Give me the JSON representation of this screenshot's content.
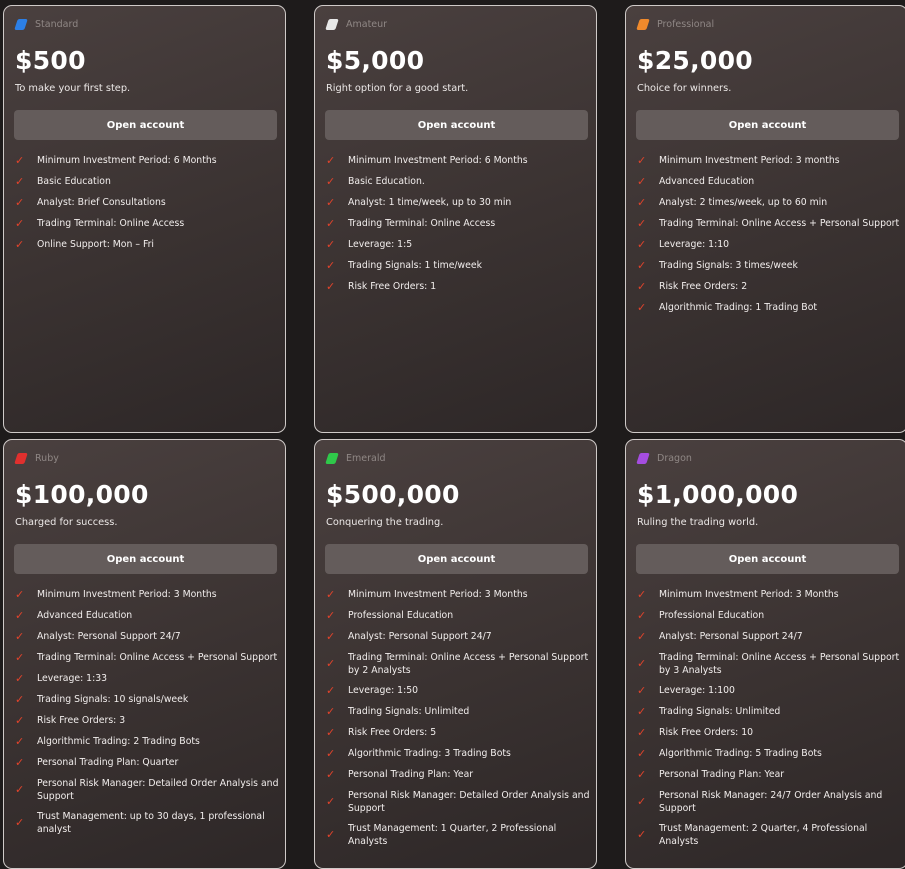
{
  "plans": [
    {
      "tier": "Standard",
      "flag_color": "#2c7fe6",
      "price": "$500",
      "tagline": "To make your first step.",
      "cta": "Open account",
      "features": [
        "Minimum Investment Period: 6 Months",
        "Basic Education",
        "Analyst: Brief Consultations",
        "Trading Terminal: Online Access",
        "Online Support: Mon – Fri"
      ]
    },
    {
      "tier": "Amateur",
      "flag_color": "#e8e8e8",
      "price": "$5,000",
      "tagline": "Right option for a good start.",
      "cta": "Open account",
      "features": [
        "Minimum Investment Period: 6 Months",
        "Basic Education.",
        "Analyst: 1 time/week, up to 30 min",
        "Trading Terminal: Online Access",
        "Leverage: 1:5",
        "Trading Signals: 1 time/week",
        "Risk Free Orders: 1"
      ]
    },
    {
      "tier": "Professional",
      "flag_color": "#f08a2c",
      "price": "$25,000",
      "tagline": "Choice for winners.",
      "cta": "Open account",
      "features": [
        "Minimum Investment Period: 3 months",
        "Advanced Education",
        "Analyst: 2 times/week, up to 60 min",
        "Trading Terminal: Online Access + Personal Support",
        "Leverage: 1:10",
        "Trading Signals: 3 times/week",
        "Risk Free Orders: 2",
        "Algorithmic Trading: 1 Trading Bot"
      ]
    },
    {
      "tier": "Ruby",
      "flag_color": "#e0302e",
      "price": "$100,000",
      "tagline": "Charged for success.",
      "cta": "Open account",
      "features": [
        "Minimum Investment Period: 3 Months",
        "Advanced Education",
        "Analyst: Personal Support 24/7",
        "Trading Terminal: Online Access + Personal Support",
        "Leverage: 1:33",
        "Trading Signals: 10 signals/week",
        "Risk Free Orders: 3",
        "Algorithmic Trading: 2 Trading Bots",
        "Personal Trading Plan: Quarter",
        "Personal Risk Manager: Detailed Order Analysis and Support",
        "Trust Management: up to 30 days, 1 professional analyst"
      ]
    },
    {
      "tier": "Emerald",
      "flag_color": "#2fc84a",
      "price": "$500,000",
      "tagline": "Conquering the trading.",
      "cta": "Open account",
      "features": [
        "Minimum Investment Period: 3 Months",
        "Professional Education",
        "Analyst: Personal Support 24/7",
        "Trading Terminal: Online Access + Personal Support by 2 Analysts",
        "Leverage: 1:50",
        "Trading Signals: Unlimited",
        "Risk Free Orders: 5",
        "Algorithmic Trading: 3 Trading Bots",
        "Personal Trading Plan: Year",
        "Personal Risk Manager: Detailed Order Analysis and Support",
        "Trust Management: 1 Quarter, 2 Professional Analysts"
      ]
    },
    {
      "tier": "Dragon",
      "flag_color": "#a54de0",
      "price": "$1,000,000",
      "tagline": "Ruling the trading world.",
      "cta": "Open account",
      "features": [
        "Minimum Investment Period: 3 Months",
        "Professional Education",
        "Analyst: Personal Support 24/7",
        "Trading Terminal: Online Access + Personal Support by 3 Analysts",
        "Leverage: 1:100",
        "Trading Signals: Unlimited",
        "Risk Free Orders: 10",
        "Algorithmic Trading: 5 Trading Bots",
        "Personal Trading Plan: Year",
        "Personal Risk Manager: 24/7 Order Analysis and Support",
        "Trust Management: 2 Quarter, 4 Professional Analysts"
      ]
    }
  ],
  "icons": {
    "check": "checkmark-icon",
    "tier": "flag-icon"
  }
}
